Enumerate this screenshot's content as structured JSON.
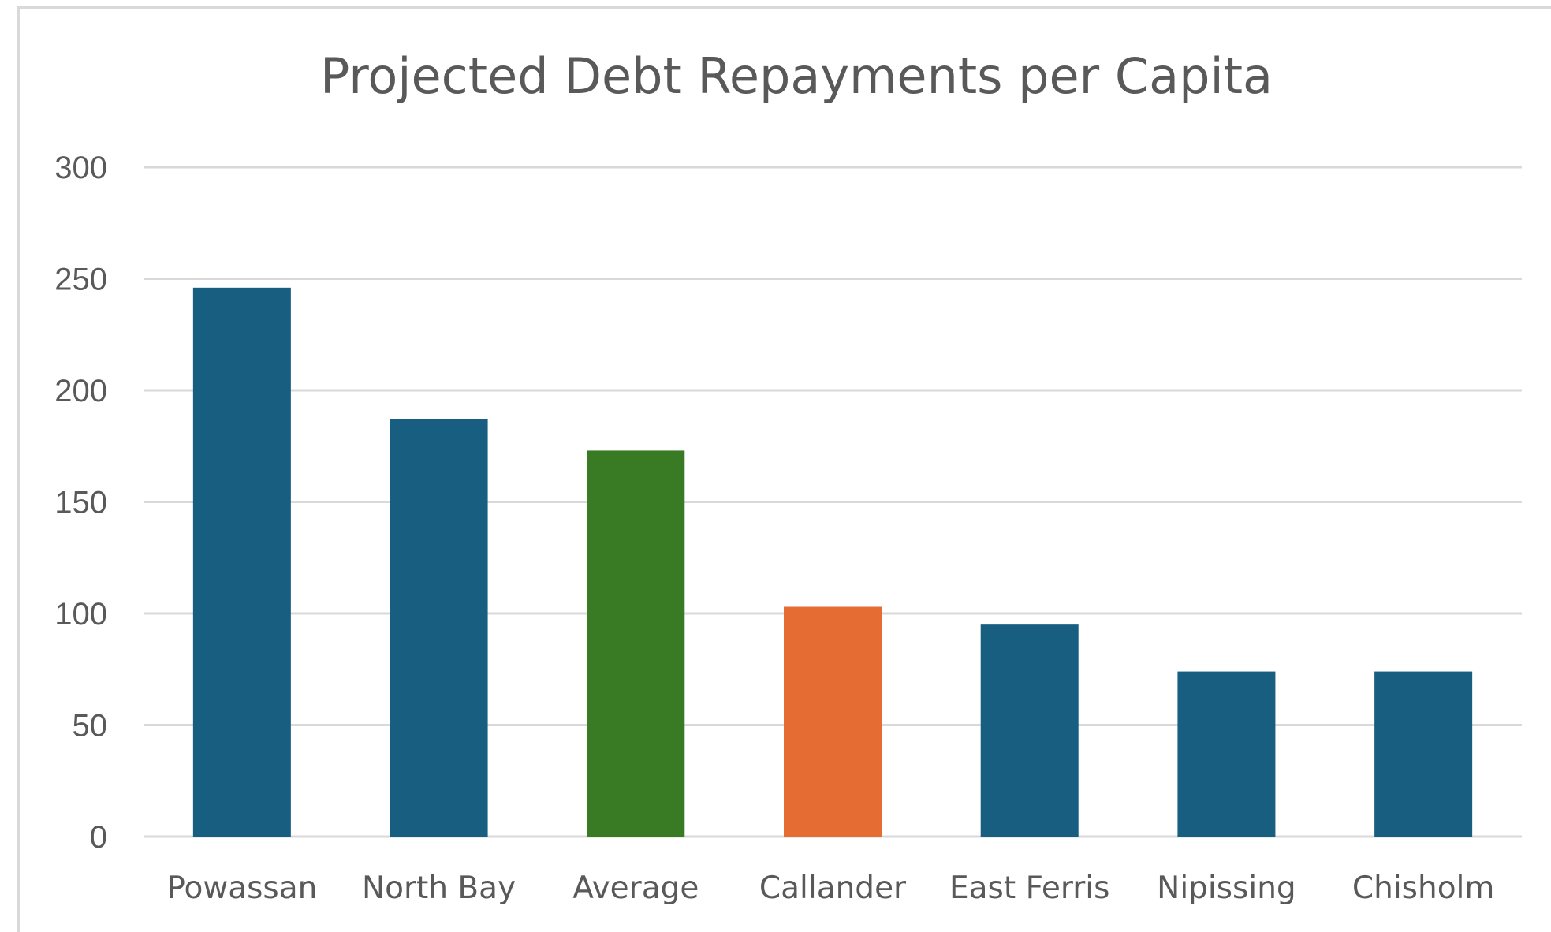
{
  "chart_data": {
    "type": "bar",
    "title": "Projected Debt Repayments per Capita",
    "xlabel": "",
    "ylabel": "",
    "categories": [
      "Powassan",
      "North Bay",
      "Average",
      "Callander",
      "East Ferris",
      "Nipissing",
      "Chisholm"
    ],
    "values": [
      246,
      187,
      173,
      103,
      95,
      74,
      74
    ],
    "bar_colors": [
      "#175e80",
      "#175e80",
      "#397b24",
      "#e56d33",
      "#175e80",
      "#175e80",
      "#175e80"
    ],
    "ylim": [
      0,
      300
    ],
    "yticks": [
      0,
      50,
      100,
      150,
      200,
      250,
      300
    ],
    "grid": true,
    "legend": "none"
  }
}
